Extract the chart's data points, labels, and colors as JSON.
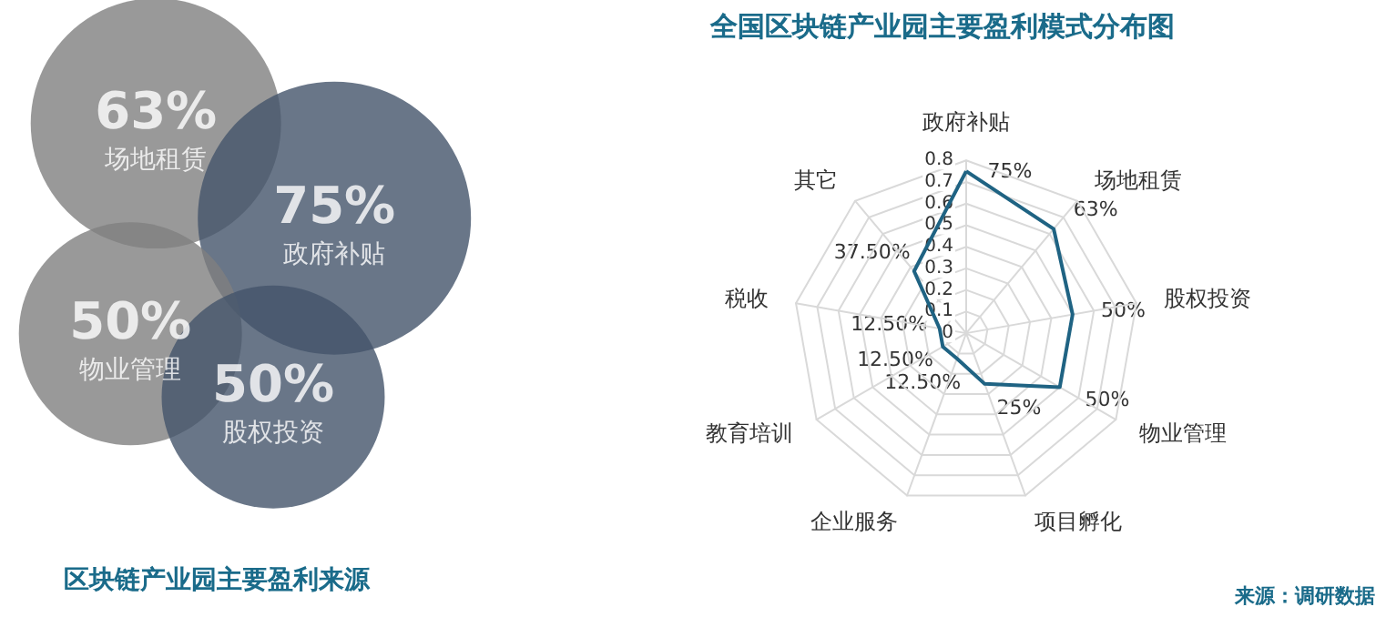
{
  "chart_data": [
    {
      "type": "other",
      "title": "区块链产业园主要盈利来源",
      "categories": [
        "场地租赁",
        "政府补贴",
        "物业管理",
        "股权投资"
      ],
      "values": [
        63,
        75,
        50,
        50
      ],
      "value_labels": [
        "63%",
        "75%",
        "50%",
        "50%"
      ],
      "colors": [
        "#7f7f7f",
        "#44546a",
        "#7f7f7f",
        "#44546a"
      ]
    },
    {
      "type": "radar",
      "title": "全国区块链产业园主要盈利模式分布图",
      "categories": [
        "政府补贴",
        "场地租赁",
        "股权投资",
        "物业管理",
        "项目孵化",
        "企业服务",
        "教育培训",
        "税收",
        "其它"
      ],
      "series": [
        {
          "color": "#1f6383",
          "values": [
            0.75,
            0.63,
            0.5,
            0.5,
            0.25,
            0.125,
            0.125,
            0.125,
            0.375
          ],
          "value_labels": [
            "75%",
            "63%",
            "50%",
            "50%",
            "25%",
            "12.50%",
            "12.50%",
            "12.50%",
            "37.50%"
          ]
        }
      ],
      "ylim": [
        0,
        0.8
      ],
      "yticks": [
        0,
        0.1,
        0.2,
        0.3,
        0.4,
        0.5,
        0.6,
        0.7,
        0.8
      ],
      "grid": true,
      "marker": "none",
      "annotations": [
        "来源：调研数据"
      ]
    }
  ]
}
